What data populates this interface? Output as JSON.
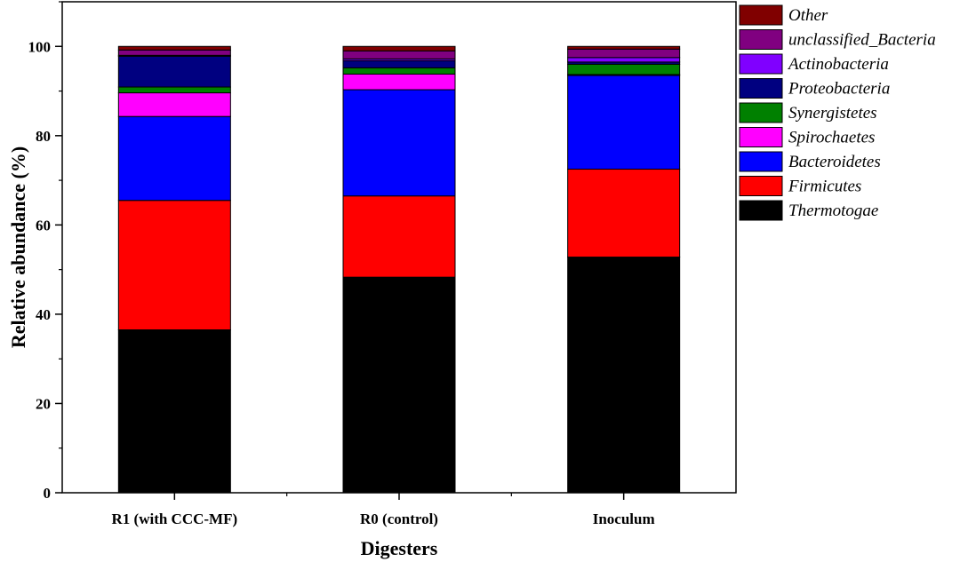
{
  "chart_data": {
    "type": "bar",
    "stacked": true,
    "title": "",
    "xlabel": "Digesters",
    "ylabel": "Relative abundance (%)",
    "ylim": [
      0,
      110
    ],
    "yticks": [
      0,
      20,
      40,
      60,
      80,
      100
    ],
    "grid": false,
    "legend_position": "right",
    "categories": [
      "R1 (with CCC-MF)",
      "R0 (control)",
      "Inoculum"
    ],
    "series": [
      {
        "name": "Thermotogae",
        "color": "#000000",
        "values": [
          36.5,
          48.3,
          52.8
        ]
      },
      {
        "name": "Firmicutes",
        "color": "#ff0000",
        "values": [
          29.0,
          18.2,
          19.7
        ]
      },
      {
        "name": "Bacteroidetes",
        "color": "#0000ff",
        "values": [
          18.8,
          23.8,
          21.0
        ]
      },
      {
        "name": "Spirochaetes",
        "color": "#ff00ff",
        "values": [
          5.3,
          3.5,
          0.2
        ]
      },
      {
        "name": "Synergistetes",
        "color": "#008000",
        "values": [
          1.3,
          1.4,
          2.3
        ]
      },
      {
        "name": "Proteobacteria",
        "color": "#000080",
        "values": [
          6.9,
          1.6,
          0.5
        ]
      },
      {
        "name": "Actinobacteria",
        "color": "#8000ff",
        "values": [
          0.2,
          0.4,
          1.0
        ]
      },
      {
        "name": "unclassified_Bacteria",
        "color": "#800080",
        "values": [
          1.2,
          1.8,
          1.9
        ]
      },
      {
        "name": "Other",
        "color": "#800000",
        "values": [
          0.8,
          1.0,
          0.6
        ]
      }
    ]
  }
}
